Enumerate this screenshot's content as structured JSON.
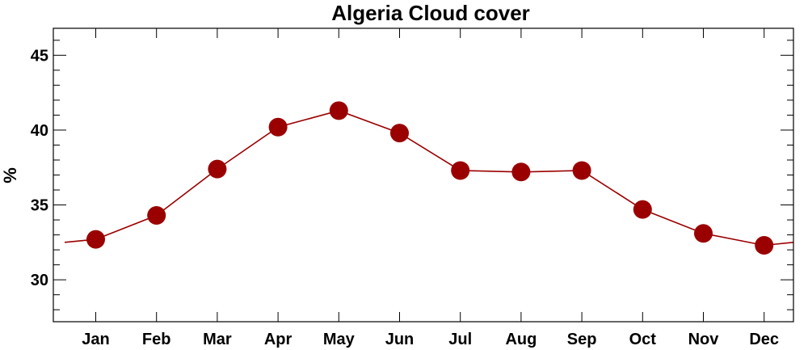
{
  "chart_data": {
    "type": "line",
    "title": "Algeria Cloud cover",
    "xlabel": "",
    "ylabel": "%",
    "categories": [
      "Jan",
      "Feb",
      "Mar",
      "Apr",
      "May",
      "Jun",
      "Jul",
      "Aug",
      "Sep",
      "Oct",
      "Nov",
      "Dec"
    ],
    "series": [
      {
        "values": [
          32.7,
          34.3,
          37.4,
          40.2,
          41.3,
          39.8,
          37.3,
          37.2,
          37.3,
          34.7,
          33.1,
          32.3
        ]
      }
    ],
    "ylim": [
      27.2,
      46.8
    ],
    "yticks": [
      30,
      35,
      40,
      45
    ],
    "edge_values": [
      32.5,
      32.5
    ],
    "color": "#9b0000",
    "grid": false,
    "legend": "none"
  }
}
